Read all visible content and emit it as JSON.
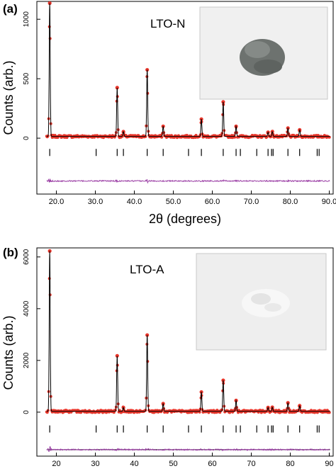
{
  "chart_data": [
    {
      "type": "line",
      "panel_label": "(a)",
      "sample_label": "LTO-N",
      "ylabel": "Counts (arb.)",
      "xlabel": "2θ (degrees)",
      "xlim": [
        15,
        91
      ],
      "ylim": [
        -470,
        1150
      ],
      "x_ticks": [
        20,
        30,
        40,
        50,
        60,
        70,
        80,
        90
      ],
      "x_tick_labels": [
        "20.0",
        "30.0",
        "40.0",
        "50.0",
        "60.0",
        "70.0",
        "80.0",
        "90.0"
      ],
      "y_ticks": [
        0,
        500,
        1000
      ],
      "y_tick_labels": [
        "0",
        "500",
        "1000"
      ],
      "inset_photo": "grey powder sample",
      "colors": {
        "observed": "#e8352a",
        "calculated": "#000000",
        "difference": "#9b3fa5",
        "photo_background": "#f0f0f0",
        "powder": "#6d726f"
      },
      "baseline": 15,
      "peaks": [
        {
          "x": 18.3,
          "y": 1120
        },
        {
          "x": 35.6,
          "y": 410
        },
        {
          "x": 37.2,
          "y": 40
        },
        {
          "x": 43.3,
          "y": 560
        },
        {
          "x": 47.4,
          "y": 85
        },
        {
          "x": 57.2,
          "y": 145
        },
        {
          "x": 62.8,
          "y": 290
        },
        {
          "x": 66.1,
          "y": 85
        },
        {
          "x": 74.3,
          "y": 35
        },
        {
          "x": 75.4,
          "y": 40
        },
        {
          "x": 79.4,
          "y": 70
        },
        {
          "x": 82.4,
          "y": 55
        }
      ],
      "bragg_positions": [
        18.3,
        30.2,
        35.6,
        37.2,
        43.3,
        47.4,
        53.9,
        57.2,
        62.8,
        66.1,
        67.2,
        71.4,
        74.3,
        75.2,
        75.6,
        79.4,
        82.4,
        86.9,
        87.4
      ],
      "bragg_level": -120,
      "difference_offset": -360
    },
    {
      "type": "line",
      "panel_label": "(b)",
      "sample_label": "LTO-A",
      "ylabel": "Counts (arb.)",
      "xlabel": "",
      "xlim": [
        15,
        91
      ],
      "ylim": [
        -1700,
        6350
      ],
      "x_ticks": [
        20,
        30,
        40,
        50,
        60,
        70,
        80,
        90
      ],
      "x_tick_labels": [
        "20",
        "30",
        "40",
        "50",
        "60",
        "70",
        "80",
        "90"
      ],
      "y_ticks": [
        0,
        2000,
        4000,
        6000
      ],
      "y_tick_labels": [
        "0",
        "2000",
        "4000",
        "6000"
      ],
      "inset_photo": "white powder sample",
      "colors": {
        "observed": "#e8352a",
        "calculated": "#000000",
        "difference": "#9b3fa5",
        "photo_background": "#eeeeee",
        "powder": "#f7f7f7"
      },
      "baseline": 30,
      "peaks": [
        {
          "x": 18.3,
          "y": 6200
        },
        {
          "x": 35.6,
          "y": 2150
        },
        {
          "x": 37.2,
          "y": 150
        },
        {
          "x": 43.3,
          "y": 2950
        },
        {
          "x": 47.4,
          "y": 300
        },
        {
          "x": 57.2,
          "y": 750
        },
        {
          "x": 62.8,
          "y": 1200
        },
        {
          "x": 66.1,
          "y": 420
        },
        {
          "x": 74.3,
          "y": 150
        },
        {
          "x": 75.4,
          "y": 160
        },
        {
          "x": 79.4,
          "y": 330
        },
        {
          "x": 82.4,
          "y": 220
        }
      ],
      "bragg_positions": [
        18.3,
        30.2,
        35.6,
        37.2,
        43.3,
        47.4,
        53.9,
        57.2,
        62.8,
        66.1,
        67.2,
        71.4,
        74.3,
        75.2,
        75.6,
        79.4,
        82.4,
        86.9,
        87.4
      ],
      "bragg_level": -650,
      "difference_offset": -1450
    }
  ]
}
